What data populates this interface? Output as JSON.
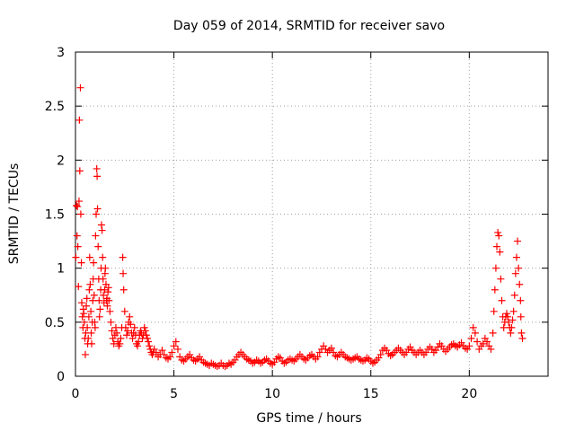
{
  "chart_data": {
    "type": "scatter",
    "title": "Day 059 of 2014, SRMTID for receiver savo",
    "xlabel": "GPS time / hours",
    "ylabel": "SRMTID / TECUs",
    "xlim": [
      0,
      24
    ],
    "ylim": [
      0,
      3
    ],
    "xticks": [
      0,
      5,
      10,
      15,
      20
    ],
    "xtick_labels": [
      "0",
      "5",
      "10",
      "15",
      "20"
    ],
    "yticks": [
      0,
      0.5,
      1,
      1.5,
      2,
      2.5,
      3
    ],
    "ytick_labels": [
      "0",
      "0.5",
      "1",
      "1.5",
      "2",
      "2.5",
      "3"
    ],
    "grid": true,
    "marker": "+",
    "color": "#ff0000",
    "series": [
      {
        "name": "savo",
        "points": [
          [
            0.02,
            1.1
          ],
          [
            0.05,
            1.58
          ],
          [
            0.08,
            1.3
          ],
          [
            0.1,
            1.57
          ],
          [
            0.12,
            1.2
          ],
          [
            0.15,
            0.83
          ],
          [
            0.18,
            1.62
          ],
          [
            0.2,
            2.37
          ],
          [
            0.22,
            1.9
          ],
          [
            0.25,
            2.67
          ],
          [
            0.27,
            1.5
          ],
          [
            0.3,
            1.05
          ],
          [
            0.32,
            0.68
          ],
          [
            0.35,
            0.55
          ],
          [
            0.38,
            0.45
          ],
          [
            0.4,
            0.62
          ],
          [
            0.42,
            0.58
          ],
          [
            0.45,
            0.5
          ],
          [
            0.48,
            0.35
          ],
          [
            0.5,
            0.2
          ],
          [
            0.52,
            0.4
          ],
          [
            0.55,
            0.65
          ],
          [
            0.58,
            0.72
          ],
          [
            0.6,
            0.45
          ],
          [
            0.62,
            0.3
          ],
          [
            0.65,
            0.35
          ],
          [
            0.68,
            0.55
          ],
          [
            0.7,
            0.8
          ],
          [
            0.72,
            1.1
          ],
          [
            0.75,
            0.85
          ],
          [
            0.78,
            0.6
          ],
          [
            0.8,
            0.4
          ],
          [
            0.82,
            0.3
          ],
          [
            0.85,
            0.5
          ],
          [
            0.88,
            0.7
          ],
          [
            0.9,
            0.9
          ],
          [
            0.92,
            1.05
          ],
          [
            0.95,
            0.75
          ],
          [
            0.98,
            0.5
          ],
          [
            1.0,
            0.45
          ],
          [
            1.02,
            1.3
          ],
          [
            1.05,
            1.5
          ],
          [
            1.08,
            1.92
          ],
          [
            1.1,
            1.85
          ],
          [
            1.12,
            1.55
          ],
          [
            1.15,
            1.2
          ],
          [
            1.18,
            0.9
          ],
          [
            1.2,
            0.7
          ],
          [
            1.22,
            0.55
          ],
          [
            1.25,
            0.62
          ],
          [
            1.28,
            0.8
          ],
          [
            1.3,
            1.0
          ],
          [
            1.32,
            1.4
          ],
          [
            1.35,
            1.35
          ],
          [
            1.38,
            1.1
          ],
          [
            1.4,
            0.9
          ],
          [
            1.42,
            0.75
          ],
          [
            1.45,
            0.68
          ],
          [
            1.48,
            0.8
          ],
          [
            1.5,
            0.95
          ],
          [
            1.52,
            1.0
          ],
          [
            1.55,
            0.85
          ],
          [
            1.58,
            0.7
          ],
          [
            1.6,
            0.72
          ],
          [
            1.62,
            0.65
          ],
          [
            1.65,
            0.78
          ],
          [
            1.68,
            0.82
          ],
          [
            1.7,
            0.7
          ],
          [
            1.75,
            0.6
          ],
          [
            1.8,
            0.5
          ],
          [
            1.85,
            0.42
          ],
          [
            1.9,
            0.35
          ],
          [
            1.95,
            0.3
          ],
          [
            2.0,
            0.38
          ],
          [
            2.05,
            0.45
          ],
          [
            2.1,
            0.4
          ],
          [
            2.15,
            0.32
          ],
          [
            2.2,
            0.28
          ],
          [
            2.25,
            0.3
          ],
          [
            2.3,
            0.35
          ],
          [
            2.35,
            0.45
          ],
          [
            2.4,
            1.1
          ],
          [
            2.42,
            0.95
          ],
          [
            2.45,
            0.8
          ],
          [
            2.5,
            0.6
          ],
          [
            2.55,
            0.45
          ],
          [
            2.6,
            0.38
          ],
          [
            2.65,
            0.42
          ],
          [
            2.7,
            0.5
          ],
          [
            2.75,
            0.55
          ],
          [
            2.8,
            0.48
          ],
          [
            2.85,
            0.4
          ],
          [
            2.9,
            0.35
          ],
          [
            2.95,
            0.4
          ],
          [
            3.0,
            0.45
          ],
          [
            3.05,
            0.38
          ],
          [
            3.1,
            0.3
          ],
          [
            3.15,
            0.28
          ],
          [
            3.2,
            0.32
          ],
          [
            3.25,
            0.38
          ],
          [
            3.3,
            0.42
          ],
          [
            3.35,
            0.4
          ],
          [
            3.4,
            0.35
          ],
          [
            3.45,
            0.38
          ],
          [
            3.5,
            0.45
          ],
          [
            3.55,
            0.42
          ],
          [
            3.6,
            0.38
          ],
          [
            3.65,
            0.35
          ],
          [
            3.7,
            0.32
          ],
          [
            3.75,
            0.28
          ],
          [
            3.8,
            0.25
          ],
          [
            3.85,
            0.22
          ],
          [
            3.9,
            0.2
          ],
          [
            3.95,
            0.22
          ],
          [
            4.0,
            0.25
          ],
          [
            4.1,
            0.22
          ],
          [
            4.2,
            0.18
          ],
          [
            4.3,
            0.2
          ],
          [
            4.4,
            0.24
          ],
          [
            4.5,
            0.2
          ],
          [
            4.6,
            0.17
          ],
          [
            4.7,
            0.16
          ],
          [
            4.8,
            0.18
          ],
          [
            4.9,
            0.22
          ],
          [
            5.0,
            0.28
          ],
          [
            5.1,
            0.32
          ],
          [
            5.2,
            0.25
          ],
          [
            5.3,
            0.18
          ],
          [
            5.4,
            0.15
          ],
          [
            5.5,
            0.14
          ],
          [
            5.6,
            0.16
          ],
          [
            5.7,
            0.18
          ],
          [
            5.8,
            0.2
          ],
          [
            5.9,
            0.17
          ],
          [
            6.0,
            0.15
          ],
          [
            6.1,
            0.14
          ],
          [
            6.2,
            0.16
          ],
          [
            6.3,
            0.18
          ],
          [
            6.4,
            0.15
          ],
          [
            6.5,
            0.13
          ],
          [
            6.6,
            0.12
          ],
          [
            6.7,
            0.11
          ],
          [
            6.8,
            0.1
          ],
          [
            6.9,
            0.12
          ],
          [
            7.0,
            0.11
          ],
          [
            7.1,
            0.1
          ],
          [
            7.2,
            0.09
          ],
          [
            7.3,
            0.1
          ],
          [
            7.4,
            0.12
          ],
          [
            7.5,
            0.1
          ],
          [
            7.6,
            0.09
          ],
          [
            7.7,
            0.1
          ],
          [
            7.8,
            0.12
          ],
          [
            7.9,
            0.11
          ],
          [
            8.0,
            0.13
          ],
          [
            8.1,
            0.15
          ],
          [
            8.2,
            0.18
          ],
          [
            8.3,
            0.2
          ],
          [
            8.4,
            0.22
          ],
          [
            8.5,
            0.2
          ],
          [
            8.6,
            0.18
          ],
          [
            8.7,
            0.16
          ],
          [
            8.8,
            0.15
          ],
          [
            8.9,
            0.14
          ],
          [
            9.0,
            0.12
          ],
          [
            9.1,
            0.13
          ],
          [
            9.2,
            0.15
          ],
          [
            9.3,
            0.14
          ],
          [
            9.4,
            0.12
          ],
          [
            9.5,
            0.13
          ],
          [
            9.6,
            0.15
          ],
          [
            9.7,
            0.16
          ],
          [
            9.8,
            0.14
          ],
          [
            9.9,
            0.12
          ],
          [
            10.0,
            0.11
          ],
          [
            10.1,
            0.13
          ],
          [
            10.2,
            0.16
          ],
          [
            10.3,
            0.18
          ],
          [
            10.4,
            0.17
          ],
          [
            10.5,
            0.14
          ],
          [
            10.6,
            0.12
          ],
          [
            10.7,
            0.13
          ],
          [
            10.8,
            0.15
          ],
          [
            10.9,
            0.16
          ],
          [
            11.0,
            0.15
          ],
          [
            11.1,
            0.14
          ],
          [
            11.2,
            0.16
          ],
          [
            11.3,
            0.18
          ],
          [
            11.4,
            0.2
          ],
          [
            11.5,
            0.18
          ],
          [
            11.6,
            0.16
          ],
          [
            11.7,
            0.15
          ],
          [
            11.8,
            0.17
          ],
          [
            11.9,
            0.19
          ],
          [
            12.0,
            0.2
          ],
          [
            12.1,
            0.18
          ],
          [
            12.2,
            0.16
          ],
          [
            12.3,
            0.18
          ],
          [
            12.4,
            0.22
          ],
          [
            12.5,
            0.25
          ],
          [
            12.6,
            0.28
          ],
          [
            12.7,
            0.25
          ],
          [
            12.8,
            0.22
          ],
          [
            12.9,
            0.24
          ],
          [
            13.0,
            0.26
          ],
          [
            13.1,
            0.22
          ],
          [
            13.2,
            0.19
          ],
          [
            13.3,
            0.18
          ],
          [
            13.4,
            0.2
          ],
          [
            13.5,
            0.22
          ],
          [
            13.6,
            0.2
          ],
          [
            13.7,
            0.18
          ],
          [
            13.8,
            0.17
          ],
          [
            13.9,
            0.16
          ],
          [
            14.0,
            0.15
          ],
          [
            14.1,
            0.16
          ],
          [
            14.2,
            0.17
          ],
          [
            14.3,
            0.18
          ],
          [
            14.4,
            0.16
          ],
          [
            14.5,
            0.15
          ],
          [
            14.6,
            0.14
          ],
          [
            14.7,
            0.15
          ],
          [
            14.8,
            0.17
          ],
          [
            14.9,
            0.16
          ],
          [
            15.0,
            0.14
          ],
          [
            15.1,
            0.12
          ],
          [
            15.2,
            0.13
          ],
          [
            15.3,
            0.15
          ],
          [
            15.4,
            0.17
          ],
          [
            15.5,
            0.2
          ],
          [
            15.6,
            0.24
          ],
          [
            15.7,
            0.26
          ],
          [
            15.8,
            0.24
          ],
          [
            15.9,
            0.21
          ],
          [
            16.0,
            0.19
          ],
          [
            16.1,
            0.2
          ],
          [
            16.2,
            0.22
          ],
          [
            16.3,
            0.24
          ],
          [
            16.4,
            0.26
          ],
          [
            16.5,
            0.24
          ],
          [
            16.6,
            0.22
          ],
          [
            16.7,
            0.2
          ],
          [
            16.8,
            0.22
          ],
          [
            16.9,
            0.25
          ],
          [
            17.0,
            0.27
          ],
          [
            17.1,
            0.24
          ],
          [
            17.2,
            0.22
          ],
          [
            17.3,
            0.2
          ],
          [
            17.4,
            0.22
          ],
          [
            17.5,
            0.24
          ],
          [
            17.6,
            0.22
          ],
          [
            17.7,
            0.2
          ],
          [
            17.8,
            0.22
          ],
          [
            17.9,
            0.25
          ],
          [
            18.0,
            0.27
          ],
          [
            18.1,
            0.25
          ],
          [
            18.2,
            0.22
          ],
          [
            18.3,
            0.24
          ],
          [
            18.4,
            0.27
          ],
          [
            18.5,
            0.3
          ],
          [
            18.6,
            0.28
          ],
          [
            18.7,
            0.25
          ],
          [
            18.8,
            0.23
          ],
          [
            18.9,
            0.25
          ],
          [
            19.0,
            0.27
          ],
          [
            19.1,
            0.29
          ],
          [
            19.2,
            0.3
          ],
          [
            19.3,
            0.28
          ],
          [
            19.4,
            0.27
          ],
          [
            19.5,
            0.29
          ],
          [
            19.6,
            0.31
          ],
          [
            19.7,
            0.28
          ],
          [
            19.8,
            0.26
          ],
          [
            19.9,
            0.25
          ],
          [
            20.0,
            0.28
          ],
          [
            20.1,
            0.35
          ],
          [
            20.2,
            0.45
          ],
          [
            20.3,
            0.4
          ],
          [
            20.4,
            0.32
          ],
          [
            20.5,
            0.25
          ],
          [
            20.6,
            0.28
          ],
          [
            20.7,
            0.3
          ],
          [
            20.8,
            0.35
          ],
          [
            20.9,
            0.32
          ],
          [
            21.0,
            0.28
          ],
          [
            21.1,
            0.25
          ],
          [
            21.2,
            0.4
          ],
          [
            21.25,
            0.6
          ],
          [
            21.3,
            0.8
          ],
          [
            21.35,
            1.0
          ],
          [
            21.4,
            1.2
          ],
          [
            21.45,
            1.33
          ],
          [
            21.5,
            1.3
          ],
          [
            21.55,
            1.15
          ],
          [
            21.6,
            0.9
          ],
          [
            21.65,
            0.7
          ],
          [
            21.7,
            0.55
          ],
          [
            21.75,
            0.45
          ],
          [
            21.8,
            0.5
          ],
          [
            21.85,
            0.55
          ],
          [
            21.9,
            0.58
          ],
          [
            21.95,
            0.55
          ],
          [
            22.0,
            0.5
          ],
          [
            22.05,
            0.45
          ],
          [
            22.1,
            0.4
          ],
          [
            22.15,
            0.45
          ],
          [
            22.2,
            0.52
          ],
          [
            22.25,
            0.6
          ],
          [
            22.3,
            0.75
          ],
          [
            22.35,
            0.95
          ],
          [
            22.4,
            1.1
          ],
          [
            22.45,
            1.25
          ],
          [
            22.5,
            1.0
          ],
          [
            22.55,
            0.85
          ],
          [
            22.6,
            0.7
          ],
          [
            22.62,
            0.55
          ],
          [
            22.65,
            0.4
          ],
          [
            22.7,
            0.35
          ]
        ]
      }
    ]
  }
}
